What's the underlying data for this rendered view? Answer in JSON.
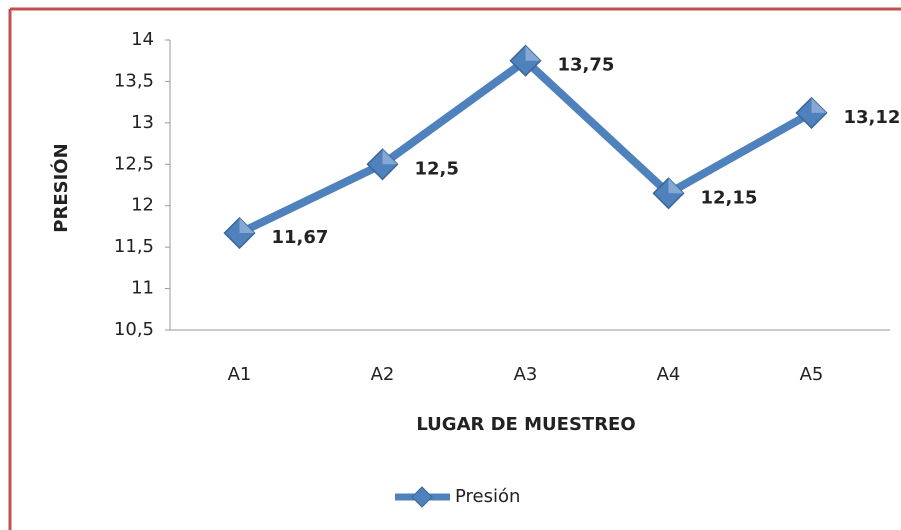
{
  "chart_data": {
    "type": "line",
    "categories": [
      "A1",
      "A2",
      "A3",
      "A4",
      "A5"
    ],
    "series": [
      {
        "name": "Presión",
        "color": "#4f81bd",
        "values": [
          11.67,
          12.5,
          13.75,
          12.15,
          13.12
        ],
        "value_labels": [
          "11,67",
          "12,5",
          "13,75",
          "12,15",
          "13,12"
        ]
      }
    ],
    "ylim": [
      10.5,
      14
    ],
    "yticks": [
      {
        "value": 10.5,
        "label": "10,5"
      },
      11,
      {
        "value": 11.5,
        "label": "11,5"
      },
      12,
      {
        "value": 12.5,
        "label": "12,5"
      },
      13,
      {
        "value": 13.5,
        "label": "13,5"
      },
      14
    ],
    "y_label": "PRESIÓN",
    "x_label": "LUGAR DE MUESTREO",
    "grid": false,
    "legend": "bottom"
  }
}
